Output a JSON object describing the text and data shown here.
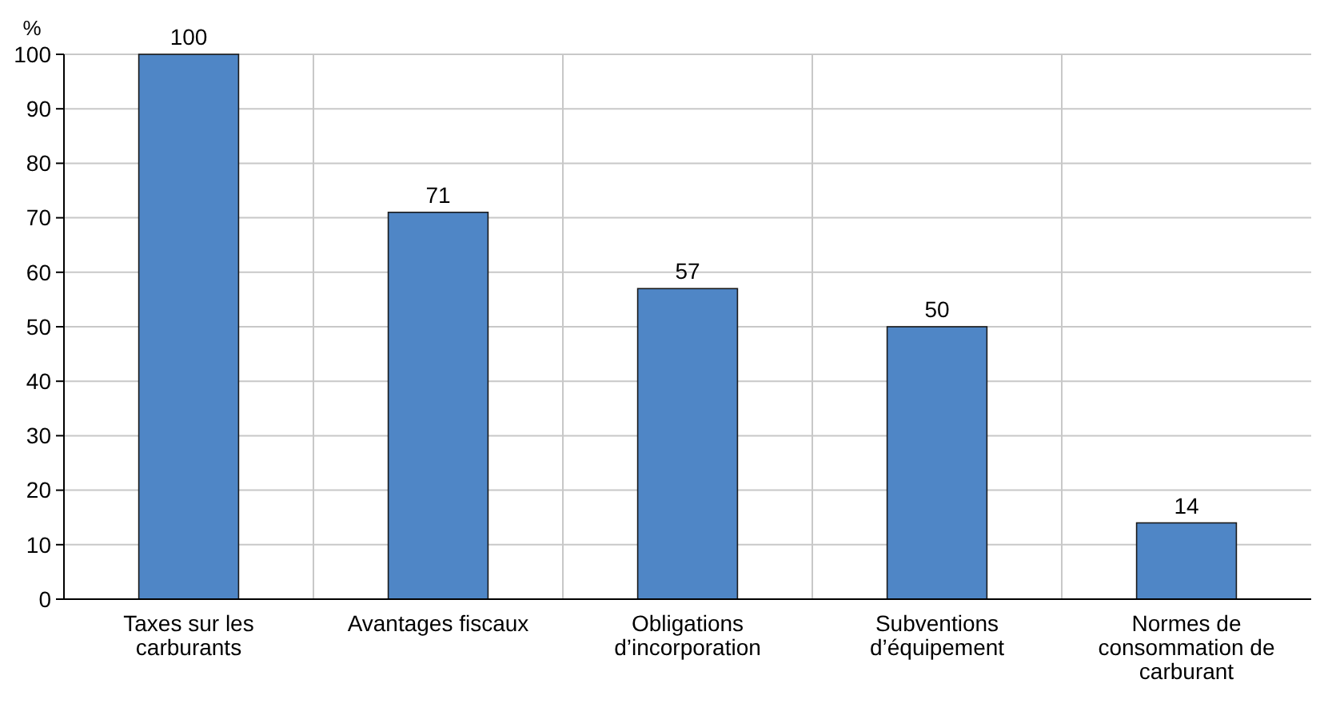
{
  "chart_data": {
    "type": "bar",
    "ylabel": "%",
    "categories": [
      "Taxes sur les carburants",
      "Avantages fiscaux",
      "Obligations d’incorporation",
      "Subventions d’équipement",
      "Normes de consommation de carburant"
    ],
    "values": [
      100,
      71,
      57,
      50,
      14
    ],
    "color": "#4f86c6",
    "data_labels": true,
    "ylim": [
      0,
      100
    ],
    "yticks": [
      0,
      10,
      20,
      30,
      40,
      50,
      60,
      70,
      80,
      90,
      100
    ],
    "grid": true
  }
}
